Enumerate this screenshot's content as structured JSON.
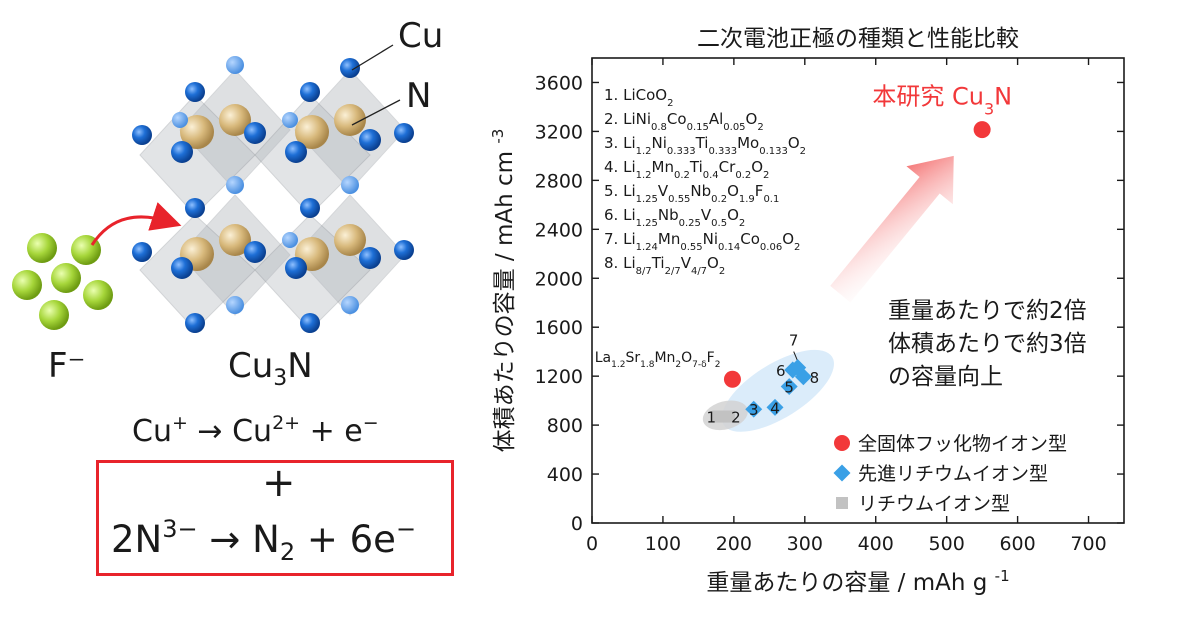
{
  "illustration": {
    "label_cu": "Cu",
    "label_n": "N",
    "label_fluoride": "F⁻",
    "compound": {
      "base": "Cu",
      "sub": "3",
      "tail": "N"
    }
  },
  "equations": {
    "eq1": {
      "a": "Cu",
      "a_sup": "+",
      "arrow": " → Cu",
      "b_sup": "2+",
      "rest": " + e",
      "e_sup": "−"
    },
    "plus": "+",
    "eq2": {
      "a": "2N",
      "a_sup": "3−",
      "mid": " → N",
      "sub": "2",
      "rest": " + 6e",
      "e_sup": "−"
    }
  },
  "colors": {
    "copper_atom": "#1565c8",
    "nitrogen_atom": "#d9b97a",
    "fluoride_ion": "#9ccc2a",
    "arrow_red": "#e8232b",
    "highlight_red": "#f2383a",
    "advanced_li": "#3aa0e6",
    "li_ion": "#c2c2c2"
  },
  "chart_data": {
    "type": "scatter",
    "title": "二次電池正極の種類と性能比較",
    "xlabel": "重量あたりの容量",
    "xunit": "mAh g",
    "xunit_sup": "-1",
    "ylabel": "体積あたりの容量",
    "yunit": "mAh cm",
    "yunit_sup": "-3",
    "xlim": [
      0,
      750
    ],
    "ylim": [
      0,
      3800
    ],
    "xticks": [
      0,
      100,
      200,
      300,
      400,
      500,
      600,
      700
    ],
    "yticks": [
      0,
      400,
      800,
      1200,
      1600,
      2000,
      2400,
      2800,
      3200,
      3600
    ],
    "grid": false,
    "legend_position": "bottom-right",
    "series": [
      {
        "name": "全固体フッ化物イオン型",
        "marker": "circle",
        "points": [
          {
            "x": 198,
            "y": 1175,
            "label": ""
          },
          {
            "x": 550,
            "y": 3215,
            "label": ""
          }
        ]
      },
      {
        "name": "先進リチウムイオン型",
        "marker": "diamond",
        "points": [
          {
            "x": 228,
            "y": 930,
            "label": "3"
          },
          {
            "x": 258,
            "y": 945,
            "label": "4"
          },
          {
            "x": 278,
            "y": 1115,
            "label": "5"
          },
          {
            "x": 283,
            "y": 1250,
            "label": "6"
          },
          {
            "x": 290,
            "y": 1270,
            "label": "7"
          },
          {
            "x": 298,
            "y": 1195,
            "label": "8"
          }
        ]
      },
      {
        "name": "リチウムイオン型",
        "marker": "square",
        "points": [
          {
            "x": 178,
            "y": 870,
            "label": "1"
          },
          {
            "x": 193,
            "y": 870,
            "label": "2"
          }
        ]
      }
    ],
    "materials_list": [
      {
        "n": "1. ",
        "f": [
          [
            "LiCoO",
            ""
          ],
          [
            "2",
            "sub"
          ]
        ]
      },
      {
        "n": "2. ",
        "f": [
          [
            "LiNi",
            ""
          ],
          [
            "0.8",
            "sub"
          ],
          [
            "Co",
            ""
          ],
          [
            "0.15",
            "sub"
          ],
          [
            "Al",
            ""
          ],
          [
            "0.05",
            "sub"
          ],
          [
            "O",
            ""
          ],
          [
            "2",
            "sub"
          ]
        ]
      },
      {
        "n": "3. ",
        "f": [
          [
            "Li",
            ""
          ],
          [
            "1.2",
            "sub"
          ],
          [
            "Ni",
            ""
          ],
          [
            "0.333",
            "sub"
          ],
          [
            "Ti",
            ""
          ],
          [
            "0.333",
            "sub"
          ],
          [
            "Mo",
            ""
          ],
          [
            "0.133",
            "sub"
          ],
          [
            "O",
            ""
          ],
          [
            "2",
            "sub"
          ]
        ]
      },
      {
        "n": "4. ",
        "f": [
          [
            "Li",
            ""
          ],
          [
            "1.2",
            "sub"
          ],
          [
            "Mn",
            ""
          ],
          [
            "0.2",
            "sub"
          ],
          [
            "Ti",
            ""
          ],
          [
            "0.4",
            "sub"
          ],
          [
            "Cr",
            ""
          ],
          [
            "0.2",
            "sub"
          ],
          [
            "O",
            ""
          ],
          [
            "2",
            "sub"
          ]
        ]
      },
      {
        "n": "5. ",
        "f": [
          [
            "Li",
            ""
          ],
          [
            "1.25",
            "sub"
          ],
          [
            "V",
            ""
          ],
          [
            "0.55",
            "sub"
          ],
          [
            "Nb",
            ""
          ],
          [
            "0.2",
            "sub"
          ],
          [
            "O",
            ""
          ],
          [
            "1.9",
            "sub"
          ],
          [
            "F",
            ""
          ],
          [
            "0.1",
            "sub"
          ]
        ]
      },
      {
        "n": "6. ",
        "f": [
          [
            "Li",
            ""
          ],
          [
            "1.25",
            "sub"
          ],
          [
            "Nb",
            ""
          ],
          [
            "0.25",
            "sub"
          ],
          [
            "V",
            ""
          ],
          [
            "0.5",
            "sub"
          ],
          [
            "O",
            ""
          ],
          [
            "2",
            "sub"
          ]
        ]
      },
      {
        "n": "7. ",
        "f": [
          [
            "Li",
            ""
          ],
          [
            "1.24",
            "sub"
          ],
          [
            "Mn",
            ""
          ],
          [
            "0.55",
            "sub"
          ],
          [
            "Ni",
            ""
          ],
          [
            "0.14",
            "sub"
          ],
          [
            "Co",
            ""
          ],
          [
            "0.06",
            "sub"
          ],
          [
            "O",
            ""
          ],
          [
            "2",
            "sub"
          ]
        ]
      },
      {
        "n": "8. ",
        "f": [
          [
            "Li",
            ""
          ],
          [
            "8/7",
            "sub"
          ],
          [
            "Ti",
            ""
          ],
          [
            "2/7",
            "sub"
          ],
          [
            "V",
            ""
          ],
          [
            "4/7",
            "sub"
          ],
          [
            "O",
            ""
          ],
          [
            "2",
            "sub"
          ]
        ]
      }
    ],
    "annotations": {
      "la_label": [
        [
          "La",
          ""
        ],
        [
          "1.2",
          "sub"
        ],
        [
          "Sr",
          ""
        ],
        [
          "1.8",
          "sub"
        ],
        [
          "Mn",
          ""
        ],
        [
          "2",
          "sub"
        ],
        [
          "O",
          ""
        ],
        [
          "7-δ",
          "sub"
        ],
        [
          "F",
          ""
        ],
        [
          "2",
          "sub"
        ]
      ],
      "this_work": [
        [
          "本研究 Cu",
          ""
        ],
        [
          "3",
          "sub"
        ],
        [
          "N",
          ""
        ]
      ],
      "improvement_lines": [
        "重量あたりで約2倍",
        "体積あたりで約3倍",
        "の容量向上"
      ]
    }
  }
}
